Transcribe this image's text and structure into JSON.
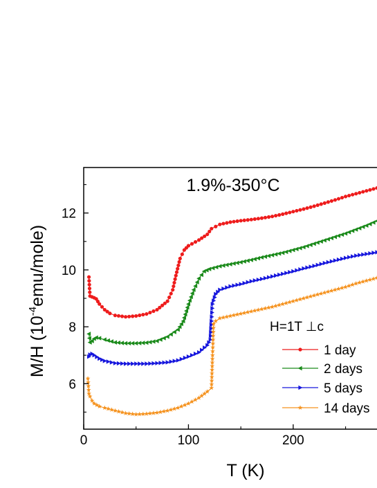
{
  "chart_data": {
    "type": "line",
    "title": "1.9%-350°C",
    "xlabel": "T (K)",
    "ylabel_main": "M/H (10",
    "ylabel_sup": "-4",
    "ylabel_rest": "emu/mole)",
    "xlim": [
      0,
      280
    ],
    "ylim": [
      4.4,
      13.6
    ],
    "xticks": [
      "0",
      "100",
      "200"
    ],
    "yticks": [
      "6",
      "8",
      "10",
      "12"
    ],
    "legend_title": "H=1T ⊥c",
    "legend_position": "right",
    "series": [
      {
        "name": "1 day",
        "color": "#ee1c1c",
        "marker": "circle",
        "points": [
          [
            5,
            9.75
          ],
          [
            6,
            9.08
          ],
          [
            8,
            9.05
          ],
          [
            10,
            9.02
          ],
          [
            12,
            8.98
          ],
          [
            15,
            8.8
          ],
          [
            20,
            8.6
          ],
          [
            25,
            8.47
          ],
          [
            30,
            8.4
          ],
          [
            40,
            8.35
          ],
          [
            50,
            8.38
          ],
          [
            60,
            8.45
          ],
          [
            70,
            8.6
          ],
          [
            80,
            8.9
          ],
          [
            85,
            9.3
          ],
          [
            88,
            9.8
          ],
          [
            92,
            10.4
          ],
          [
            96,
            10.7
          ],
          [
            100,
            10.85
          ],
          [
            110,
            11.05
          ],
          [
            118,
            11.25
          ],
          [
            122,
            11.45
          ],
          [
            130,
            11.6
          ],
          [
            140,
            11.68
          ],
          [
            150,
            11.73
          ],
          [
            160,
            11.77
          ],
          [
            170,
            11.82
          ],
          [
            180,
            11.88
          ],
          [
            190,
            11.96
          ],
          [
            200,
            12.05
          ],
          [
            210,
            12.14
          ],
          [
            220,
            12.24
          ],
          [
            230,
            12.35
          ],
          [
            240,
            12.46
          ],
          [
            250,
            12.58
          ],
          [
            260,
            12.68
          ],
          [
            270,
            12.78
          ],
          [
            280,
            12.88
          ]
        ]
      },
      {
        "name": "2 days",
        "color": "#1a8a1a",
        "marker": "triangle-left",
        "points": [
          [
            5,
            7.75
          ],
          [
            6,
            7.45
          ],
          [
            8,
            7.5
          ],
          [
            10,
            7.58
          ],
          [
            12,
            7.62
          ],
          [
            15,
            7.6
          ],
          [
            20,
            7.55
          ],
          [
            30,
            7.45
          ],
          [
            40,
            7.42
          ],
          [
            50,
            7.42
          ],
          [
            60,
            7.44
          ],
          [
            70,
            7.5
          ],
          [
            80,
            7.65
          ],
          [
            90,
            7.9
          ],
          [
            95,
            8.2
          ],
          [
            100,
            8.8
          ],
          [
            105,
            9.3
          ],
          [
            110,
            9.7
          ],
          [
            115,
            9.95
          ],
          [
            120,
            10.03
          ],
          [
            130,
            10.13
          ],
          [
            140,
            10.2
          ],
          [
            150,
            10.27
          ],
          [
            160,
            10.35
          ],
          [
            170,
            10.44
          ],
          [
            180,
            10.52
          ],
          [
            190,
            10.6
          ],
          [
            200,
            10.7
          ],
          [
            210,
            10.8
          ],
          [
            220,
            10.92
          ],
          [
            230,
            11.04
          ],
          [
            240,
            11.16
          ],
          [
            250,
            11.28
          ],
          [
            260,
            11.42
          ],
          [
            270,
            11.56
          ],
          [
            280,
            11.72
          ]
        ]
      },
      {
        "name": "5 days",
        "color": "#1616dd",
        "marker": "triangle-right",
        "points": [
          [
            5,
            6.95
          ],
          [
            6,
            7.02
          ],
          [
            8,
            7.05
          ],
          [
            10,
            7.0
          ],
          [
            15,
            6.88
          ],
          [
            20,
            6.8
          ],
          [
            30,
            6.72
          ],
          [
            40,
            6.7
          ],
          [
            50,
            6.7
          ],
          [
            60,
            6.7
          ],
          [
            70,
            6.72
          ],
          [
            80,
            6.75
          ],
          [
            90,
            6.82
          ],
          [
            100,
            6.95
          ],
          [
            110,
            7.1
          ],
          [
            118,
            7.35
          ],
          [
            121,
            7.55
          ],
          [
            122,
            8.2
          ],
          [
            123,
            8.8
          ],
          [
            126,
            9.15
          ],
          [
            130,
            9.3
          ],
          [
            140,
            9.42
          ],
          [
            150,
            9.5
          ],
          [
            160,
            9.6
          ],
          [
            170,
            9.68
          ],
          [
            180,
            9.77
          ],
          [
            190,
            9.86
          ],
          [
            200,
            9.95
          ],
          [
            210,
            10.05
          ],
          [
            220,
            10.14
          ],
          [
            230,
            10.24
          ],
          [
            240,
            10.33
          ],
          [
            250,
            10.42
          ],
          [
            260,
            10.5
          ],
          [
            270,
            10.56
          ],
          [
            280,
            10.62
          ]
        ]
      },
      {
        "name": "14 days",
        "color": "#f5921e",
        "marker": "star",
        "points": [
          [
            4,
            6.18
          ],
          [
            5,
            5.65
          ],
          [
            6,
            5.55
          ],
          [
            8,
            5.4
          ],
          [
            10,
            5.3
          ],
          [
            15,
            5.2
          ],
          [
            20,
            5.15
          ],
          [
            30,
            5.05
          ],
          [
            40,
            4.96
          ],
          [
            50,
            4.92
          ],
          [
            60,
            4.94
          ],
          [
            70,
            4.98
          ],
          [
            80,
            5.05
          ],
          [
            90,
            5.15
          ],
          [
            100,
            5.3
          ],
          [
            110,
            5.5
          ],
          [
            118,
            5.72
          ],
          [
            122,
            5.85
          ],
          [
            123,
            7.0
          ],
          [
            124,
            8.1
          ],
          [
            126,
            8.2
          ],
          [
            130,
            8.3
          ],
          [
            140,
            8.38
          ],
          [
            150,
            8.46
          ],
          [
            160,
            8.54
          ],
          [
            170,
            8.62
          ],
          [
            180,
            8.7
          ],
          [
            190,
            8.8
          ],
          [
            200,
            8.9
          ],
          [
            210,
            9.0
          ],
          [
            220,
            9.1
          ],
          [
            230,
            9.2
          ],
          [
            240,
            9.3
          ],
          [
            250,
            9.4
          ],
          [
            260,
            9.52
          ],
          [
            270,
            9.62
          ],
          [
            280,
            9.72
          ]
        ]
      }
    ]
  }
}
